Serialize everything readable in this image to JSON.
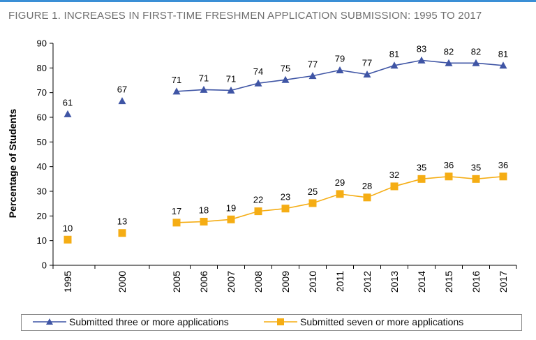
{
  "figure_title": "FIGURE 1. INCREASES IN FIRST-TIME FRESHMEN APPLICATION SUBMISSION: 1995 TO 2017",
  "colors": {
    "accent_bar": "#3a8fd6",
    "series1": "#3f55a5",
    "series2": "#f5ad14",
    "axis": "#000000"
  },
  "chart_data": {
    "type": "line",
    "ylabel": "Percentage of Students",
    "xlabel": "",
    "ylim": [
      0,
      90
    ],
    "yticks": [
      0,
      10,
      20,
      30,
      40,
      50,
      60,
      70,
      80,
      90
    ],
    "grid": false,
    "legend_position": "bottom",
    "x": [
      "1995",
      "2000",
      "2005",
      "2006",
      "2007",
      "2008",
      "2009",
      "2010",
      "2011",
      "2012",
      "2013",
      "2014",
      "2015",
      "2016",
      "2017"
    ],
    "series": [
      {
        "name": "Submitted three or more applications",
        "marker": "triangle",
        "values": [
          61.3,
          66.6,
          70.5,
          71.2,
          70.9,
          73.8,
          75.2,
          76.8,
          79.1,
          77.4,
          81,
          83.1,
          82,
          82,
          81
        ],
        "labels": [
          "61",
          "67",
          "71",
          "71",
          "71",
          "74",
          "75",
          "77",
          "79",
          "77",
          "81",
          "83",
          "82",
          "82",
          "81"
        ]
      },
      {
        "name": "Submitted seven or more applications",
        "marker": "square",
        "values": [
          10.4,
          13.1,
          17.3,
          17.7,
          18.6,
          21.9,
          23,
          25.2,
          28.9,
          27.5,
          32,
          35,
          36,
          35,
          36
        ],
        "labels": [
          "10",
          "13",
          "17",
          "18",
          "19",
          "22",
          "23",
          "25",
          "29",
          "28",
          "32",
          "35",
          "36",
          "35",
          "36"
        ]
      }
    ]
  }
}
